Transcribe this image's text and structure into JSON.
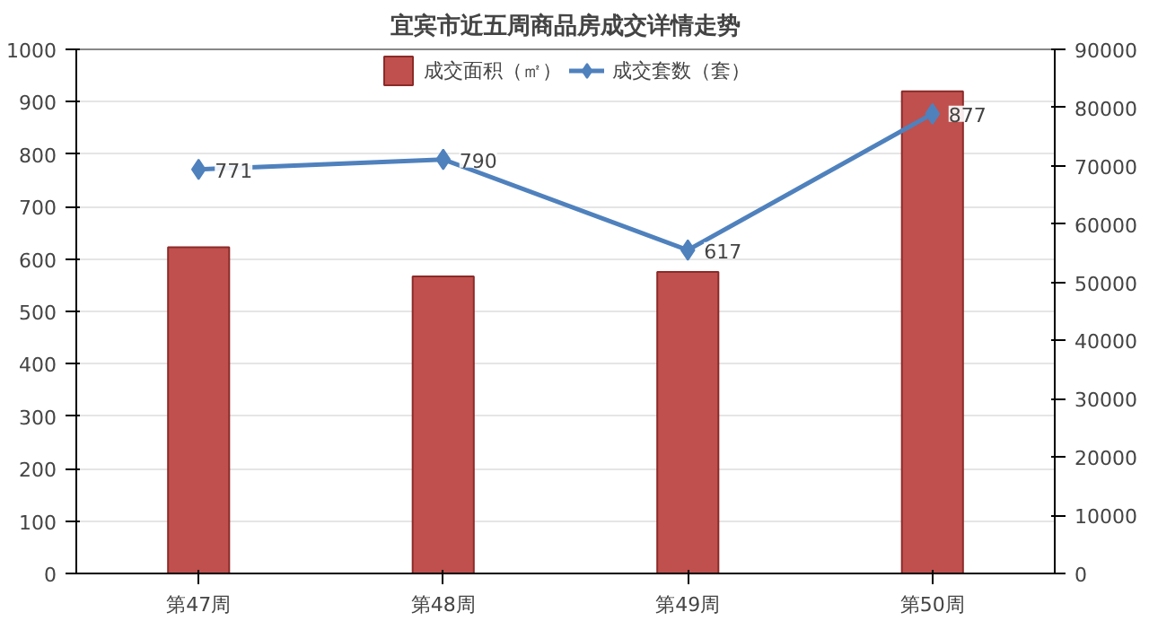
{
  "chart_data": {
    "type": "bar",
    "title": "宜宾市近五周商品房成交详情走势",
    "categories": [
      "第47周",
      "第48周",
      "第49周",
      "第50周"
    ],
    "series": [
      {
        "name": "成交面积（㎡）",
        "axis": "y2",
        "color": "#c0504d",
        "values": [
          56000,
          51000,
          51800,
          82800
        ]
      },
      {
        "name": "成交套数（套）",
        "type": "line",
        "axis": "y",
        "color": "#4f81bd",
        "values": [
          771,
          790,
          617,
          877
        ],
        "value_labels": [
          "771",
          "790",
          "617",
          "877"
        ]
      }
    ],
    "ylim": [
      0,
      1000
    ],
    "yticks": [
      0,
      100,
      200,
      300,
      400,
      500,
      600,
      700,
      800,
      900,
      1000
    ],
    "y2lim": [
      0,
      90000
    ],
    "y2ticks": [
      0,
      10000,
      20000,
      30000,
      40000,
      50000,
      60000,
      70000,
      80000,
      90000
    ],
    "grid": "y",
    "legend": "top",
    "marker": "diamond",
    "line_style": "solid"
  }
}
